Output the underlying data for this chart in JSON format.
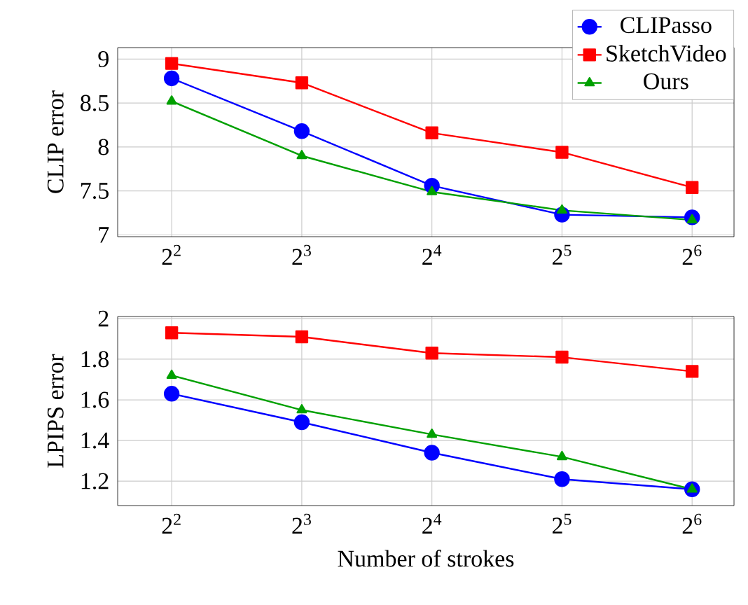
{
  "chart_data": [
    {
      "type": "line",
      "ylabel": "CLIP error",
      "log": "x",
      "grid": true,
      "legend": "top right",
      "x": [
        4,
        8,
        16,
        32,
        64
      ],
      "xlim": [
        3,
        80
      ],
      "xticks": [
        {
          "value": 4,
          "label": "2$^{2}$"
        },
        {
          "value": 8,
          "label": "2$^{3}$"
        },
        {
          "value": 16,
          "label": "2$^{4}$"
        },
        {
          "value": 32,
          "label": "2$^{5}$"
        },
        {
          "value": 64,
          "label": "2$^{6}$"
        }
      ],
      "ylim": [
        6.98,
        9.13
      ],
      "yticks": [
        7,
        7.5,
        8,
        8.5,
        9
      ],
      "series": [
        {
          "name": "CLIPasso",
          "color": "#0000ff",
          "marker": "circle",
          "values": [
            8.78,
            8.18,
            7.56,
            7.23,
            7.2
          ]
        },
        {
          "name": "SketchVideo",
          "color": "#ff0000",
          "marker": "square",
          "values": [
            8.95,
            8.73,
            8.16,
            7.94,
            7.54
          ]
        },
        {
          "name": "Ours",
          "color": "#00a000",
          "marker": "triangle",
          "values": [
            8.52,
            7.9,
            7.49,
            7.28,
            7.17
          ]
        }
      ]
    },
    {
      "type": "line",
      "ylabel": "LPIPS error",
      "xlabel": "Number of strokes",
      "log": "x",
      "grid": true,
      "x": [
        4,
        8,
        16,
        32,
        64
      ],
      "xlim": [
        3,
        80
      ],
      "xticks": [
        {
          "value": 4,
          "label": "2$^{2}$"
        },
        {
          "value": 8,
          "label": "2$^{3}$"
        },
        {
          "value": 16,
          "label": "2$^{4}$"
        },
        {
          "value": 32,
          "label": "2$^{5}$"
        },
        {
          "value": 64,
          "label": "2$^{6}$"
        }
      ],
      "ylim": [
        1.08,
        2.01
      ],
      "yticks": [
        1.2,
        1.4,
        1.6,
        1.8,
        2
      ],
      "series": [
        {
          "color": "#0000ff",
          "marker": "circle",
          "values": [
            1.63,
            1.49,
            1.34,
            1.21,
            1.16
          ]
        },
        {
          "color": "#ff0000",
          "marker": "square",
          "values": [
            1.93,
            1.91,
            1.83,
            1.81,
            1.74
          ]
        },
        {
          "color": "#00a000",
          "marker": "triangle",
          "values": [
            1.72,
            1.55,
            1.43,
            1.32,
            1.16
          ]
        }
      ]
    }
  ]
}
